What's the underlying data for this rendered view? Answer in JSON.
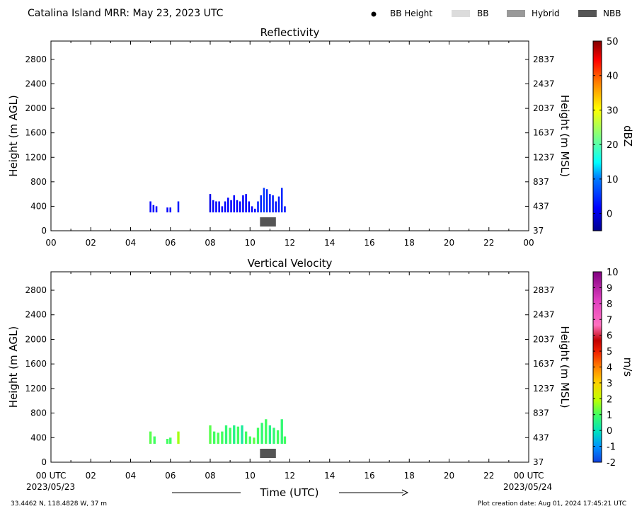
{
  "header": {
    "title": "Catalina Island MRR:  May 23, 2023 UTC",
    "legend": [
      {
        "label": "BB Height",
        "kind": "dot",
        "color": "#000000"
      },
      {
        "label": "BB",
        "kind": "box",
        "color": "#dcdcdc"
      },
      {
        "label": "Hybrid",
        "kind": "box",
        "color": "#999999"
      },
      {
        "label": "NBB",
        "kind": "box",
        "color": "#555555"
      }
    ]
  },
  "footer": {
    "location": "33.4462 N, 118.4828 W, 37 m",
    "created": "Plot creation date: Aug 01, 2024 17:45:21 UTC",
    "xlabel": "Time (UTC)",
    "start_date": "2023/05/23",
    "end_date": "2023/05/24"
  },
  "chart_data": [
    {
      "type": "heatmap",
      "title": "Reflectivity",
      "ylabel_left": "Height (m AGL)",
      "ylabel_right": "Height (m MSL)",
      "yticks_left": [
        "0",
        "400",
        "800",
        "1200",
        "1600",
        "2000",
        "2400",
        "2800"
      ],
      "yticks_right": [
        "37",
        "437",
        "837",
        "1237",
        "1637",
        "2037",
        "2437",
        "2837"
      ],
      "xticks": [
        "00",
        "02",
        "04",
        "06",
        "08",
        "10",
        "12",
        "14",
        "16",
        "18",
        "20",
        "22",
        "00"
      ],
      "xlim_hours": [
        0,
        24
      ],
      "ylim_m_agl": [
        0,
        3100
      ],
      "colorbar": {
        "label": "dBZ",
        "range": [
          -5,
          50
        ],
        "ticks": [
          "0",
          "10",
          "20",
          "30",
          "40",
          "50"
        ]
      },
      "nbb_segment_hours": [
        10.5,
        11.3
      ],
      "echo_columns": [
        {
          "t": 5.0,
          "base": 300,
          "top": 480,
          "v": 0
        },
        {
          "t": 5.15,
          "base": 300,
          "top": 420,
          "v": 0
        },
        {
          "t": 5.3,
          "base": 300,
          "top": 400,
          "v": 0
        },
        {
          "t": 5.85,
          "base": 300,
          "top": 380,
          "v": 0
        },
        {
          "t": 6.0,
          "base": 300,
          "top": 380,
          "v": 0
        },
        {
          "t": 6.4,
          "base": 300,
          "top": 480,
          "v": 2
        },
        {
          "t": 8.0,
          "base": 300,
          "top": 600,
          "v": -1
        },
        {
          "t": 8.15,
          "base": 300,
          "top": 500,
          "v": 0
        },
        {
          "t": 8.3,
          "base": 300,
          "top": 480,
          "v": 0
        },
        {
          "t": 8.45,
          "base": 300,
          "top": 480,
          "v": 0
        },
        {
          "t": 8.6,
          "base": 300,
          "top": 400,
          "v": 0
        },
        {
          "t": 8.75,
          "base": 300,
          "top": 480,
          "v": 0
        },
        {
          "t": 8.9,
          "base": 300,
          "top": 540,
          "v": 0
        },
        {
          "t": 9.05,
          "base": 300,
          "top": 500,
          "v": 0
        },
        {
          "t": 9.2,
          "base": 300,
          "top": 580,
          "v": 0
        },
        {
          "t": 9.35,
          "base": 300,
          "top": 500,
          "v": 0
        },
        {
          "t": 9.5,
          "base": 300,
          "top": 480,
          "v": 0
        },
        {
          "t": 9.65,
          "base": 300,
          "top": 580,
          "v": 0
        },
        {
          "t": 9.8,
          "base": 300,
          "top": 600,
          "v": 0
        },
        {
          "t": 9.95,
          "base": 300,
          "top": 480,
          "v": 0
        },
        {
          "t": 10.1,
          "base": 300,
          "top": 400,
          "v": 0
        },
        {
          "t": 10.25,
          "base": 300,
          "top": 360,
          "v": 0
        },
        {
          "t": 10.4,
          "base": 300,
          "top": 480,
          "v": 2
        },
        {
          "t": 10.55,
          "base": 300,
          "top": 580,
          "v": 3
        },
        {
          "t": 10.7,
          "base": 300,
          "top": 700,
          "v": 4
        },
        {
          "t": 10.85,
          "base": 300,
          "top": 680,
          "v": 3
        },
        {
          "t": 11.0,
          "base": 300,
          "top": 600,
          "v": 2
        },
        {
          "t": 11.15,
          "base": 300,
          "top": 580,
          "v": 2
        },
        {
          "t": 11.3,
          "base": 300,
          "top": 480,
          "v": 1
        },
        {
          "t": 11.45,
          "base": 300,
          "top": 560,
          "v": 2
        },
        {
          "t": 11.6,
          "base": 300,
          "top": 700,
          "v": 3
        },
        {
          "t": 11.75,
          "base": 300,
          "top": 400,
          "v": 1
        }
      ]
    },
    {
      "type": "heatmap",
      "title": "Vertical Velocity",
      "ylabel_left": "Height (m AGL)",
      "ylabel_right": "Height (m MSL)",
      "yticks_left": [
        "0",
        "400",
        "800",
        "1200",
        "1600",
        "2000",
        "2400",
        "2800"
      ],
      "yticks_right": [
        "37",
        "437",
        "837",
        "1237",
        "1637",
        "2037",
        "2437",
        "2837"
      ],
      "xticks": [
        "00 UTC",
        "02",
        "04",
        "06",
        "08",
        "10",
        "12",
        "14",
        "16",
        "18",
        "20",
        "22",
        "00 UTC"
      ],
      "xlim_hours": [
        0,
        24
      ],
      "ylim_m_agl": [
        0,
        3100
      ],
      "colorbar": {
        "label": "m/s",
        "range": [
          -2,
          10
        ],
        "ticks": [
          "-2",
          "-1",
          "0",
          "1",
          "2",
          "3",
          "4",
          "5",
          "6",
          "7",
          "8",
          "9",
          "10"
        ]
      },
      "nbb_segment_hours": [
        10.5,
        11.3
      ],
      "echo_columns": [
        {
          "t": 5.0,
          "base": 300,
          "top": 500,
          "v": 1.2
        },
        {
          "t": 5.2,
          "base": 300,
          "top": 420,
          "v": 1.0
        },
        {
          "t": 5.85,
          "base": 300,
          "top": 380,
          "v": 1.0
        },
        {
          "t": 6.0,
          "base": 300,
          "top": 400,
          "v": 1.0
        },
        {
          "t": 6.4,
          "base": 300,
          "top": 500,
          "v": 1.8
        },
        {
          "t": 8.0,
          "base": 300,
          "top": 600,
          "v": 1.2
        },
        {
          "t": 8.2,
          "base": 300,
          "top": 500,
          "v": 1.0
        },
        {
          "t": 8.4,
          "base": 300,
          "top": 480,
          "v": 1.1
        },
        {
          "t": 8.6,
          "base": 300,
          "top": 500,
          "v": 1.0
        },
        {
          "t": 8.8,
          "base": 300,
          "top": 600,
          "v": 0.8
        },
        {
          "t": 9.0,
          "base": 300,
          "top": 560,
          "v": 1.0
        },
        {
          "t": 9.2,
          "base": 300,
          "top": 600,
          "v": 0.6
        },
        {
          "t": 9.4,
          "base": 300,
          "top": 580,
          "v": 1.0
        },
        {
          "t": 9.6,
          "base": 300,
          "top": 600,
          "v": 0.4
        },
        {
          "t": 9.8,
          "base": 300,
          "top": 500,
          "v": 1.0
        },
        {
          "t": 10.0,
          "base": 300,
          "top": 420,
          "v": 1.0
        },
        {
          "t": 10.2,
          "base": 300,
          "top": 400,
          "v": 1.2
        },
        {
          "t": 10.4,
          "base": 300,
          "top": 560,
          "v": 1.0
        },
        {
          "t": 10.6,
          "base": 300,
          "top": 640,
          "v": 0.8
        },
        {
          "t": 10.8,
          "base": 300,
          "top": 700,
          "v": 1.0
        },
        {
          "t": 11.0,
          "base": 300,
          "top": 600,
          "v": 0.6
        },
        {
          "t": 11.2,
          "base": 300,
          "top": 560,
          "v": 0.8
        },
        {
          "t": 11.4,
          "base": 300,
          "top": 520,
          "v": 1.0
        },
        {
          "t": 11.6,
          "base": 300,
          "top": 700,
          "v": 0.8
        },
        {
          "t": 11.75,
          "base": 300,
          "top": 420,
          "v": 1.0
        }
      ]
    }
  ]
}
